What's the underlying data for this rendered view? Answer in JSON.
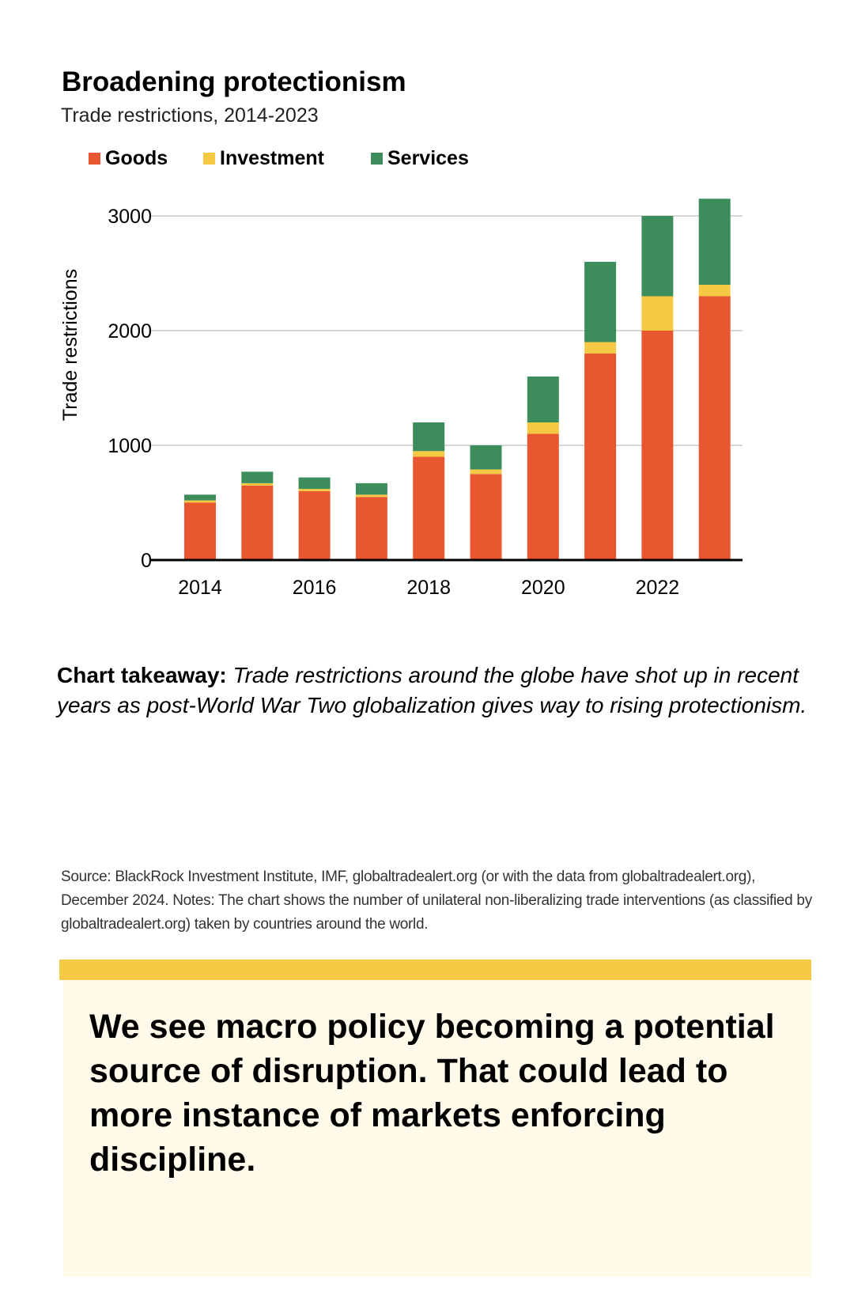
{
  "chart_data": {
    "type": "bar",
    "stacked": true,
    "title": "Broadening protectionism",
    "subtitle": "Trade restrictions, 2014-2023",
    "ylabel": "Trade restrictions",
    "xlabel": "",
    "ylim": [
      0,
      3000
    ],
    "yticks": [
      "0",
      "1000",
      "2000",
      "3000"
    ],
    "xtick_labels": [
      "2014",
      "2016",
      "2018",
      "2020",
      "2022"
    ],
    "categories": [
      "2014",
      "2015",
      "2016",
      "2017",
      "2018",
      "2019",
      "2020",
      "2021",
      "2022",
      "2023"
    ],
    "series": [
      {
        "name": "Goods",
        "color": "#e8572f",
        "values": [
          500,
          650,
          600,
          550,
          900,
          750,
          1100,
          1800,
          2000,
          2300
        ]
      },
      {
        "name": "Investment",
        "color": "#f5c944",
        "values": [
          20,
          20,
          20,
          20,
          50,
          40,
          100,
          100,
          300,
          100
        ]
      },
      {
        "name": "Services",
        "color": "#3d8c5c",
        "values": [
          50,
          100,
          100,
          100,
          250,
          210,
          400,
          700,
          700,
          750
        ]
      }
    ],
    "grid": true,
    "legend_position": "top-left"
  },
  "takeaway": {
    "lead": "Chart takeaway:",
    "body": "Trade restrictions around the globe have shot up in recent years as post-World War Two globalization gives way to rising protectionism."
  },
  "source_note": "Source: BlackRock Investment Institute, IMF, globaltradealert.org (or with the data from globaltradealert.org), December 2024. Notes: The chart shows the number of unilateral non-liberalizing trade interventions (as classified by globaltradealert.org) taken by countries around the world.",
  "callout": {
    "text": "We see macro policy becoming a potential source of disruption. That could lead to more instance of markets enforcing discipline.",
    "accent_color": "#f5c944",
    "background_color": "#fffaea"
  }
}
